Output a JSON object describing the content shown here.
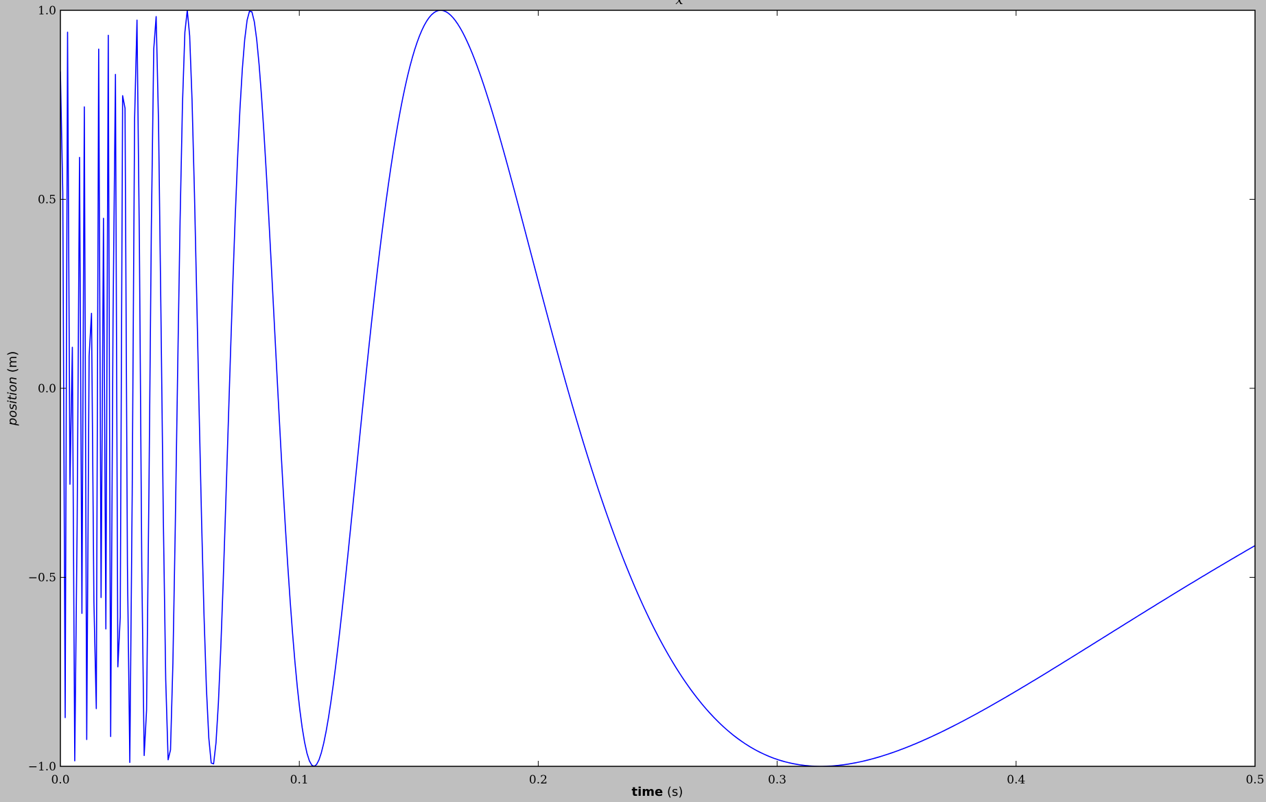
{
  "chart_data": {
    "type": "line",
    "title": "x",
    "xlabel_bold": "time",
    "xlabel_unit": "(s)",
    "ylabel_italic": "position",
    "ylabel_unit": "(m)",
    "xlim": [
      0.0,
      0.5
    ],
    "ylim": [
      -1.0,
      1.0
    ],
    "x_ticks": [
      0.0,
      0.1,
      0.2,
      0.3,
      0.4,
      0.5
    ],
    "x_tick_labels": [
      "0.0",
      "0.1",
      "0.2",
      "0.3",
      "0.4",
      "0.5"
    ],
    "y_ticks": [
      -1.0,
      -0.5,
      0.0,
      0.5,
      1.0
    ],
    "y_tick_labels": [
      "−1.0",
      "−0.5",
      "0.0",
      "0.5",
      "1.0"
    ],
    "grid": false,
    "legend": "none",
    "series_color": "#0000ff",
    "series": [
      {
        "function": "cos(1/t)",
        "x_start": 0.0,
        "x_end": 0.5,
        "samples": 500
      }
    ]
  },
  "colors": {
    "figure_background": "#bfbfbf",
    "axes_background": "#ffffff",
    "line": "#0000ff"
  }
}
